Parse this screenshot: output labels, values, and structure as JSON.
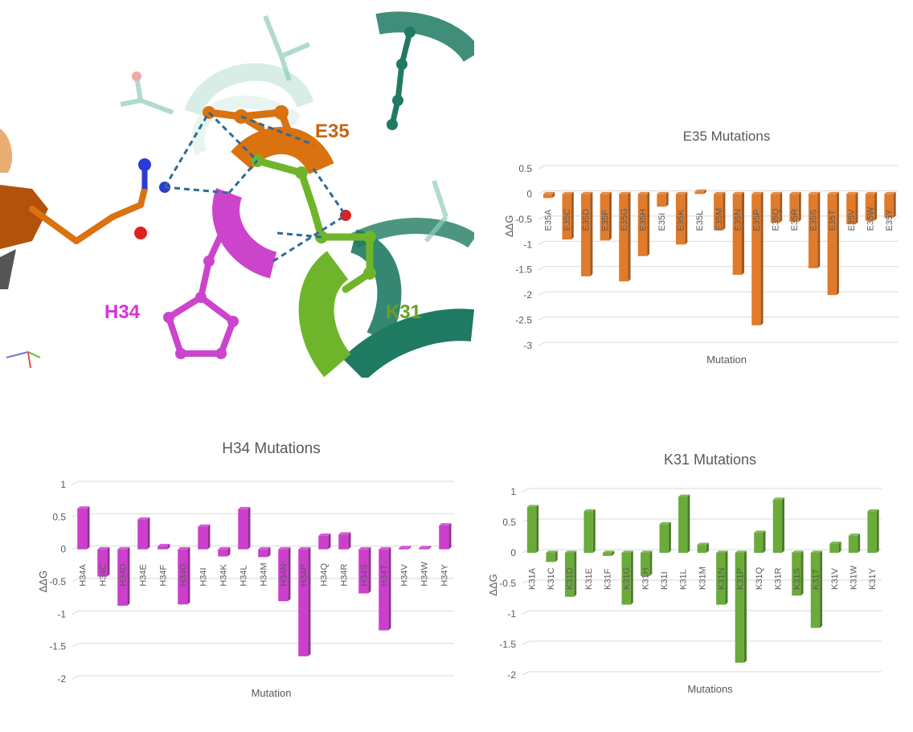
{
  "structure": {
    "labels": [
      {
        "text": "E35",
        "color": "#c8650f"
      },
      {
        "text": "H34",
        "color": "#d633d6"
      },
      {
        "text": "K31",
        "color": "#6aa121"
      }
    ],
    "colors": {
      "e35": "#d9720f",
      "h34": "#cc44cc",
      "k31": "#6fb52c",
      "ribbon": "#1f7a62",
      "hbond": "#2f6a96"
    }
  },
  "chart_data": [
    {
      "id": "e35",
      "type": "bar",
      "title": "E35 Mutations",
      "xlabel": "Mutation",
      "ylabel": "ΔΔG",
      "ylim": [
        -3,
        0.5
      ],
      "yticks": [
        0.5,
        0,
        -0.5,
        -1,
        -1.5,
        -2,
        -2.5,
        -3
      ],
      "grid": true,
      "color": "#e07b2c",
      "categories": [
        "E35A",
        "E35C",
        "E35D",
        "E35F",
        "E35G",
        "E35H",
        "E35I",
        "E35K",
        "E35L",
        "E35M",
        "E35N",
        "E35P",
        "E35Q",
        "E35R",
        "E35S",
        "E35T",
        "E35V",
        "E35W",
        "E35Y"
      ],
      "values": [
        -0.08,
        -0.9,
        -1.63,
        -0.92,
        -1.73,
        -1.23,
        -0.25,
        -1.0,
        0.05,
        -0.72,
        -1.6,
        -2.6,
        -0.57,
        -0.55,
        -1.47,
        -2.0,
        -0.6,
        -0.53,
        -0.47
      ]
    },
    {
      "id": "h34",
      "type": "bar",
      "title": "H34 Mutations",
      "xlabel": "Mutation",
      "ylabel": "ΔΔG",
      "ylim": [
        -2,
        1
      ],
      "yticks": [
        1,
        0.5,
        0,
        -0.5,
        -1,
        -1.5,
        -2
      ],
      "grid": true,
      "color": "#cc3fcc",
      "categories": [
        "H34A",
        "H34C",
        "H34D",
        "H34E",
        "H34F",
        "H34G",
        "H34I",
        "H34K",
        "H34L",
        "H34M",
        "H34N",
        "H34P",
        "H34Q",
        "H34R",
        "H34S",
        "H34T",
        "H34V",
        "H34W",
        "H34Y"
      ],
      "values": [
        0.63,
        -0.42,
        -0.87,
        0.46,
        0.05,
        -0.85,
        0.35,
        -0.11,
        0.62,
        -0.12,
        -0.8,
        -1.65,
        0.21,
        0.23,
        -0.68,
        -1.25,
        0.02,
        0.02,
        0.37
      ]
    },
    {
      "id": "k31",
      "type": "bar",
      "title": "K31 Mutations",
      "xlabel": "Mutations",
      "ylabel": "ΔΔG",
      "ylim": [
        -2,
        1
      ],
      "yticks": [
        1,
        0.5,
        0,
        -0.5,
        -1,
        -1.5,
        -2
      ],
      "grid": true,
      "color": "#6aab3a",
      "categories": [
        "K31A",
        "K31C",
        "K31D",
        "K31E",
        "K31F",
        "K31G",
        "K31H",
        "K31I",
        "K31L",
        "K31M",
        "K31N",
        "K31P",
        "K31Q",
        "K31R",
        "K31S",
        "K31T",
        "K31V",
        "K31W",
        "K31Y"
      ],
      "values": [
        0.75,
        -0.15,
        -0.72,
        0.68,
        -0.05,
        -0.85,
        -0.38,
        0.47,
        0.92,
        0.13,
        -0.85,
        -1.8,
        0.33,
        0.87,
        -0.7,
        -1.23,
        0.15,
        0.28,
        0.68
      ]
    }
  ]
}
